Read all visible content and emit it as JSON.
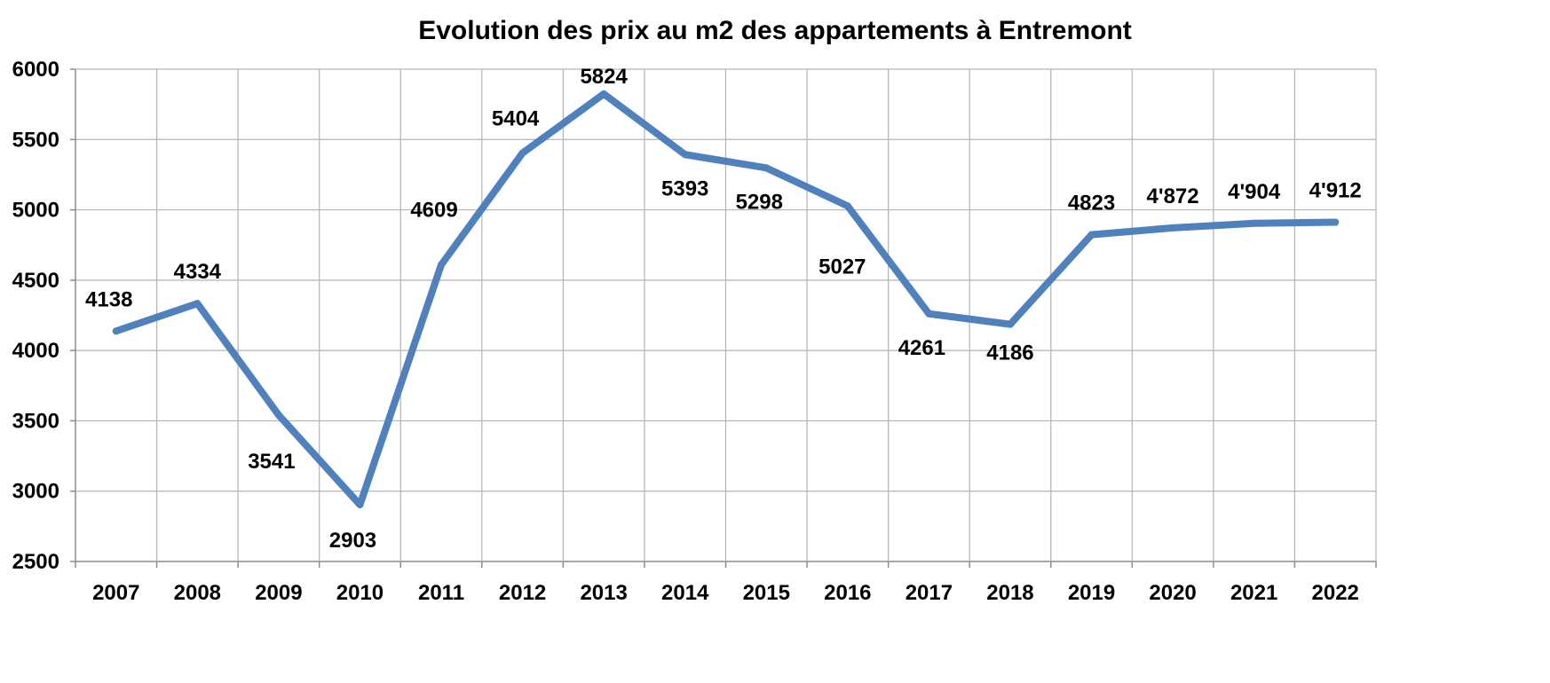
{
  "chart_data": {
    "type": "line",
    "title": "Evolution des prix au m2 des appartements à Entremont",
    "xlabel": "",
    "ylabel": "",
    "categories": [
      "2007",
      "2008",
      "2009",
      "2010",
      "2011",
      "2012",
      "2013",
      "2014",
      "2015",
      "2016",
      "2017",
      "2018",
      "2019",
      "2020",
      "2021",
      "2022"
    ],
    "series": [
      {
        "values": [
          4138,
          4334,
          3541,
          2903,
          4609,
          5404,
          5824,
          5393,
          5298,
          5027,
          4261,
          4186,
          4823,
          4872,
          4904,
          4912
        ],
        "labels": [
          "4138",
          "4334",
          "3541",
          "2903",
          "4609",
          "5404",
          "5824",
          "5393",
          "5298",
          "5027",
          "4261",
          "4186",
          "4823",
          "4'872",
          "4'904",
          "4'912"
        ]
      }
    ],
    "ylim": [
      2500,
      6000
    ],
    "yticks": [
      2500,
      3000,
      3500,
      4000,
      4500,
      5000,
      5500,
      6000
    ],
    "ytick_labels": [
      "2500",
      "3000",
      "3500",
      "4000",
      "4500",
      "5000",
      "5500",
      "6000"
    ],
    "grid": true,
    "legend": "none",
    "colors": {
      "line": "#4f81bd",
      "grid": "#b3b3b3",
      "axis": "#8c8c8c"
    }
  }
}
